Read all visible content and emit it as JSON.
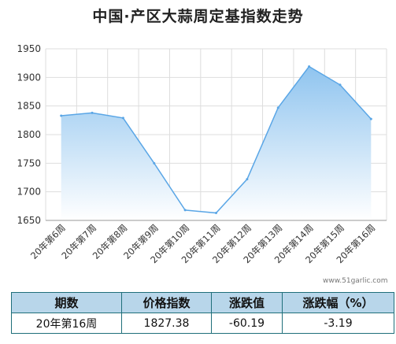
{
  "title": "中国·产区大蒜周定基指数走势",
  "watermark": "www.51garlic.com",
  "colors": {
    "area_top": "#8fc4ef",
    "area_bottom": "#ffffff",
    "line": "#5aa6e6",
    "grid": "#dddddd",
    "table_header": "#b8d6ea",
    "table_border": "#1f6f7a"
  },
  "chart_data": {
    "type": "area",
    "title": "中国·产区大蒜周定基指数走势",
    "categories": [
      "20年第6周",
      "20年第7周",
      "20年第8周",
      "20年第9周",
      "20年第10周",
      "20年第11周",
      "20年第12周",
      "20年第13周",
      "20年第14周",
      "20年第15周",
      "20年第16周"
    ],
    "values": [
      1833,
      1838,
      1829,
      1750,
      1668,
      1663,
      1722,
      1847,
      1919,
      1887,
      1827.38
    ],
    "ylim": [
      1650,
      1950
    ],
    "yticks": [
      1650,
      1700,
      1750,
      1800,
      1850,
      1900,
      1950
    ],
    "grid": true,
    "legend": "none"
  },
  "table": {
    "headers": [
      "期数",
      "价格指数",
      "涨跌值",
      "涨跌幅（%）"
    ],
    "row": [
      "20年第16周",
      "1827.38",
      "-60.19",
      "-3.19"
    ]
  }
}
